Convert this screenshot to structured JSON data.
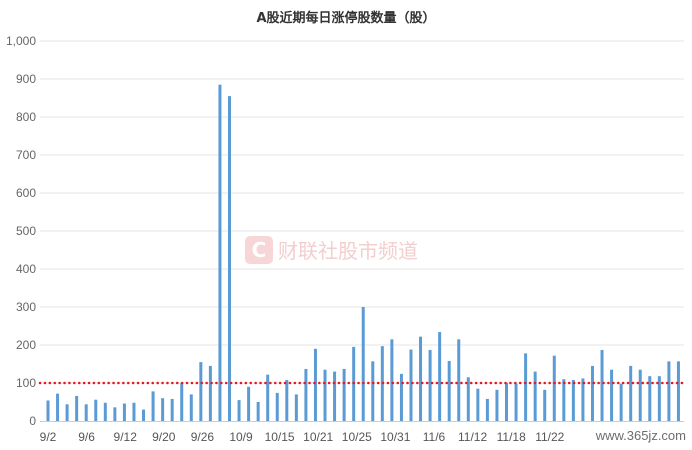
{
  "chart_data": {
    "type": "bar",
    "title": "A股近期每日涨停股数量（股）",
    "ylim": [
      0,
      1000
    ],
    "yticks": [
      "0",
      "100",
      "200",
      "300",
      "400",
      "500",
      "600",
      "700",
      "800",
      "900",
      "1,000"
    ],
    "xticks": [
      "9/2",
      "9/6",
      "9/12",
      "9/20",
      "9/26",
      "10/9",
      "10/15",
      "10/21",
      "10/25",
      "10/31",
      "11/6",
      "11/12",
      "11/18",
      "11/22"
    ],
    "grid": true,
    "reference_line": {
      "value": 100,
      "style": "dotted",
      "color": "#e8191e"
    },
    "bar_color": "#5b9bd5",
    "values": [
      54,
      72,
      44,
      66,
      44,
      56,
      48,
      36,
      46,
      48,
      30,
      78,
      60,
      58,
      100,
      70,
      155,
      145,
      885,
      855,
      55,
      90,
      50,
      122,
      74,
      108,
      70,
      137,
      190,
      135,
      130,
      137,
      195,
      300,
      157,
      197,
      215,
      124,
      188,
      222,
      187,
      234,
      158,
      215,
      115,
      85,
      58,
      82,
      100,
      98,
      178,
      130,
      82,
      172,
      110,
      108,
      112,
      145,
      187,
      135,
      98,
      145,
      135,
      118,
      118,
      157,
      157
    ]
  },
  "watermark": {
    "logo_text": "C",
    "brand_text": "财联社股市频道",
    "site_text": "www.365jz.com"
  }
}
